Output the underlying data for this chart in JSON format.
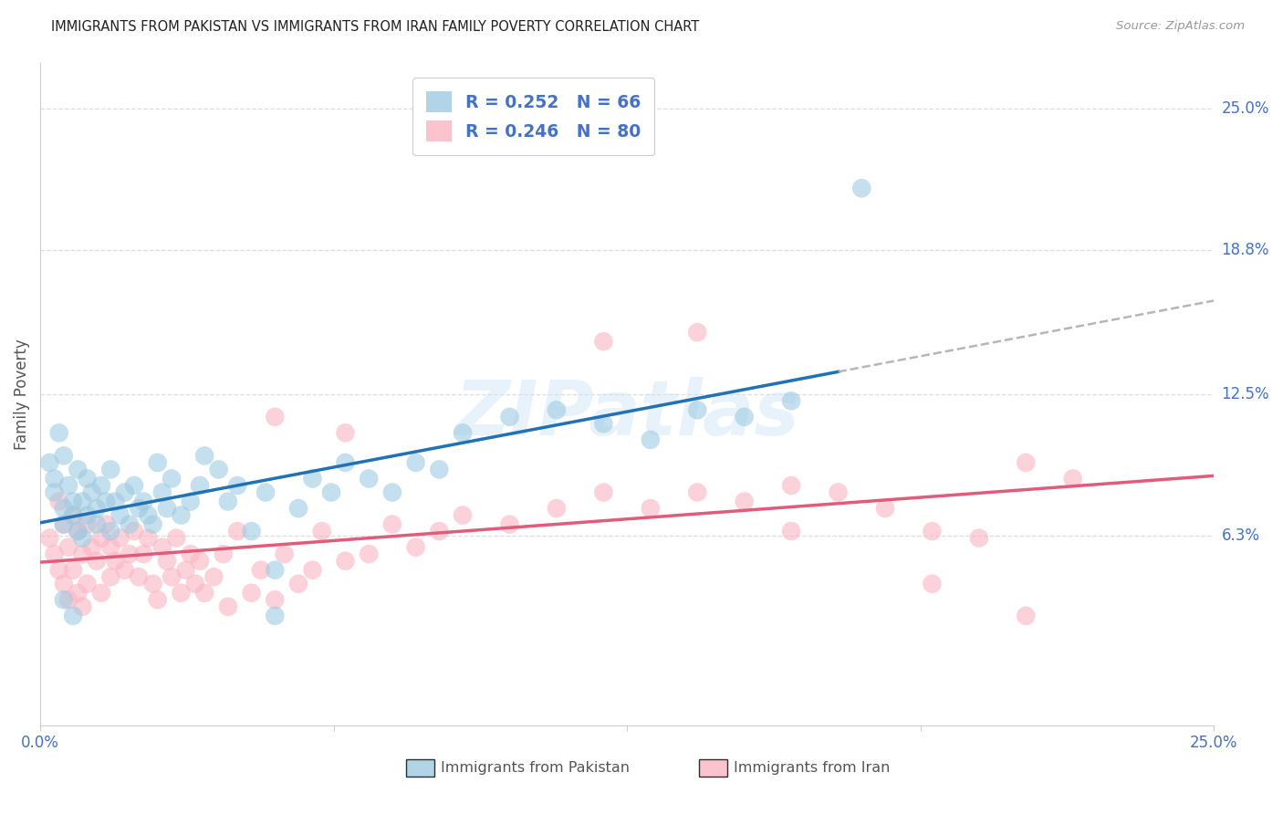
{
  "title": "IMMIGRANTS FROM PAKISTAN VS IMMIGRANTS FROM IRAN FAMILY POVERTY CORRELATION CHART",
  "source": "Source: ZipAtlas.com",
  "ylabel": "Family Poverty",
  "xlim": [
    0.0,
    0.25
  ],
  "ylim": [
    -0.02,
    0.27
  ],
  "ytick_values": [
    0.063,
    0.125,
    0.188,
    0.25
  ],
  "ytick_labels": [
    "6.3%",
    "12.5%",
    "18.8%",
    "25.0%"
  ],
  "pakistan_color": "#9ecae1",
  "iran_color": "#fbb4c2",
  "pakistan_line_color": "#2171b5",
  "iran_line_color": "#e05c7a",
  "dashed_line_color": "#aaaaaa",
  "legend_text_color": "#4472c4",
  "axis_color": "#cccccc",
  "grid_color": "#dddddd",
  "watermark": "ZIPatlas",
  "bottom_label1": "Immigrants from Pakistan",
  "bottom_label2": "Immigrants from Iran",
  "pakistan_points": [
    [
      0.002,
      0.095
    ],
    [
      0.003,
      0.088
    ],
    [
      0.003,
      0.082
    ],
    [
      0.004,
      0.108
    ],
    [
      0.005,
      0.098
    ],
    [
      0.005,
      0.075
    ],
    [
      0.005,
      0.068
    ],
    [
      0.006,
      0.085
    ],
    [
      0.007,
      0.078
    ],
    [
      0.007,
      0.072
    ],
    [
      0.008,
      0.092
    ],
    [
      0.008,
      0.065
    ],
    [
      0.009,
      0.078
    ],
    [
      0.009,
      0.062
    ],
    [
      0.01,
      0.088
    ],
    [
      0.01,
      0.072
    ],
    [
      0.011,
      0.082
    ],
    [
      0.012,
      0.075
    ],
    [
      0.012,
      0.068
    ],
    [
      0.013,
      0.085
    ],
    [
      0.014,
      0.078
    ],
    [
      0.015,
      0.092
    ],
    [
      0.015,
      0.065
    ],
    [
      0.016,
      0.078
    ],
    [
      0.017,
      0.072
    ],
    [
      0.018,
      0.082
    ],
    [
      0.019,
      0.068
    ],
    [
      0.02,
      0.085
    ],
    [
      0.021,
      0.075
    ],
    [
      0.022,
      0.078
    ],
    [
      0.023,
      0.072
    ],
    [
      0.024,
      0.068
    ],
    [
      0.025,
      0.095
    ],
    [
      0.026,
      0.082
    ],
    [
      0.027,
      0.075
    ],
    [
      0.028,
      0.088
    ],
    [
      0.03,
      0.072
    ],
    [
      0.032,
      0.078
    ],
    [
      0.034,
      0.085
    ],
    [
      0.035,
      0.098
    ],
    [
      0.038,
      0.092
    ],
    [
      0.04,
      0.078
    ],
    [
      0.042,
      0.085
    ],
    [
      0.045,
      0.065
    ],
    [
      0.048,
      0.082
    ],
    [
      0.05,
      0.048
    ],
    [
      0.055,
      0.075
    ],
    [
      0.058,
      0.088
    ],
    [
      0.062,
      0.082
    ],
    [
      0.065,
      0.095
    ],
    [
      0.07,
      0.088
    ],
    [
      0.075,
      0.082
    ],
    [
      0.08,
      0.095
    ],
    [
      0.085,
      0.092
    ],
    [
      0.09,
      0.108
    ],
    [
      0.1,
      0.115
    ],
    [
      0.11,
      0.118
    ],
    [
      0.12,
      0.112
    ],
    [
      0.13,
      0.105
    ],
    [
      0.14,
      0.118
    ],
    [
      0.15,
      0.115
    ],
    [
      0.16,
      0.122
    ],
    [
      0.175,
      0.215
    ],
    [
      0.005,
      0.035
    ],
    [
      0.007,
      0.028
    ],
    [
      0.05,
      0.028
    ]
  ],
  "iran_points": [
    [
      0.002,
      0.062
    ],
    [
      0.003,
      0.055
    ],
    [
      0.004,
      0.078
    ],
    [
      0.004,
      0.048
    ],
    [
      0.005,
      0.068
    ],
    [
      0.005,
      0.042
    ],
    [
      0.006,
      0.058
    ],
    [
      0.006,
      0.035
    ],
    [
      0.007,
      0.072
    ],
    [
      0.007,
      0.048
    ],
    [
      0.008,
      0.065
    ],
    [
      0.008,
      0.038
    ],
    [
      0.009,
      0.055
    ],
    [
      0.009,
      0.032
    ],
    [
      0.01,
      0.068
    ],
    [
      0.01,
      0.042
    ],
    [
      0.011,
      0.058
    ],
    [
      0.012,
      0.052
    ],
    [
      0.013,
      0.062
    ],
    [
      0.013,
      0.038
    ],
    [
      0.014,
      0.068
    ],
    [
      0.015,
      0.058
    ],
    [
      0.015,
      0.045
    ],
    [
      0.016,
      0.052
    ],
    [
      0.017,
      0.062
    ],
    [
      0.018,
      0.048
    ],
    [
      0.019,
      0.055
    ],
    [
      0.02,
      0.065
    ],
    [
      0.021,
      0.045
    ],
    [
      0.022,
      0.055
    ],
    [
      0.023,
      0.062
    ],
    [
      0.024,
      0.042
    ],
    [
      0.025,
      0.035
    ],
    [
      0.026,
      0.058
    ],
    [
      0.027,
      0.052
    ],
    [
      0.028,
      0.045
    ],
    [
      0.029,
      0.062
    ],
    [
      0.03,
      0.038
    ],
    [
      0.031,
      0.048
    ],
    [
      0.032,
      0.055
    ],
    [
      0.033,
      0.042
    ],
    [
      0.034,
      0.052
    ],
    [
      0.035,
      0.038
    ],
    [
      0.037,
      0.045
    ],
    [
      0.039,
      0.055
    ],
    [
      0.04,
      0.032
    ],
    [
      0.042,
      0.065
    ],
    [
      0.045,
      0.038
    ],
    [
      0.047,
      0.048
    ],
    [
      0.05,
      0.035
    ],
    [
      0.052,
      0.055
    ],
    [
      0.055,
      0.042
    ],
    [
      0.058,
      0.048
    ],
    [
      0.06,
      0.065
    ],
    [
      0.065,
      0.052
    ],
    [
      0.07,
      0.055
    ],
    [
      0.075,
      0.068
    ],
    [
      0.08,
      0.058
    ],
    [
      0.085,
      0.065
    ],
    [
      0.09,
      0.072
    ],
    [
      0.1,
      0.068
    ],
    [
      0.11,
      0.075
    ],
    [
      0.12,
      0.082
    ],
    [
      0.13,
      0.075
    ],
    [
      0.14,
      0.082
    ],
    [
      0.15,
      0.078
    ],
    [
      0.16,
      0.085
    ],
    [
      0.17,
      0.082
    ],
    [
      0.18,
      0.075
    ],
    [
      0.19,
      0.065
    ],
    [
      0.2,
      0.062
    ],
    [
      0.21,
      0.095
    ],
    [
      0.22,
      0.088
    ],
    [
      0.14,
      0.152
    ],
    [
      0.12,
      0.148
    ],
    [
      0.16,
      0.065
    ],
    [
      0.19,
      0.042
    ],
    [
      0.21,
      0.028
    ],
    [
      0.05,
      0.115
    ],
    [
      0.065,
      0.108
    ]
  ]
}
